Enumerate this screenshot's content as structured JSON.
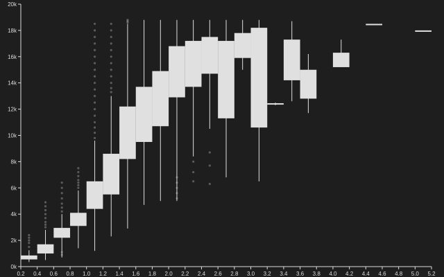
{
  "chart_data": {
    "type": "boxplot",
    "title": "",
    "xlabel": "",
    "ylabel": "",
    "xlim": [
      0.2,
      5.2
    ],
    "ylim": [
      0,
      20000
    ],
    "grid": false,
    "x_ticks": [
      0.2,
      0.4,
      0.6,
      0.8,
      1.0,
      1.2,
      1.4,
      1.6,
      1.8,
      2.0,
      2.2,
      2.4,
      2.6,
      2.8,
      3.0,
      3.2,
      3.4,
      3.6,
      3.8,
      4.0,
      4.2,
      4.4,
      4.6,
      4.8,
      5.0,
      5.2
    ],
    "x_tick_labels": [
      "0.2",
      "0.4",
      "0.6",
      "0.8",
      "1.0",
      "1.2",
      "1.4",
      "1.6",
      "1.8",
      "2.0",
      "2.2",
      "2.4",
      "2.6",
      "2.8",
      "3.0",
      "3.2",
      "3.4",
      "3.6",
      "3.8",
      "4.0",
      "4.2",
      "4.4",
      "4.6",
      "4.8",
      "5.0",
      "5.2"
    ],
    "y_ticks": [
      0,
      2000,
      4000,
      6000,
      8000,
      10000,
      12000,
      14000,
      16000,
      18000,
      20000
    ],
    "y_tick_labels": [
      "0k",
      "2k",
      "4k",
      "6k",
      "8k",
      "10k",
      "12k",
      "14k",
      "16k",
      "18k",
      "20k"
    ],
    "boxes": [
      {
        "x": 0.3,
        "min": 350,
        "q1": 550,
        "median": 700,
        "q3": 850,
        "max": 1250,
        "outliers": [
          1500,
          1800,
          2000,
          2200,
          2400
        ]
      },
      {
        "x": 0.5,
        "min": 500,
        "q1": 1000,
        "median": 1350,
        "q3": 1700,
        "max": 2800,
        "outliers": [
          3000,
          3200,
          3400,
          3700,
          4000,
          4300,
          4600,
          4900
        ]
      },
      {
        "x": 0.7,
        "min": 700,
        "q1": 2200,
        "median": 2600,
        "q3": 2950,
        "max": 4000,
        "outliers": [
          900,
          1100,
          4200,
          4500,
          4800,
          5200,
          5600,
          6000,
          6400
        ]
      },
      {
        "x": 0.9,
        "min": 1400,
        "q1": 3100,
        "median": 3600,
        "q3": 4100,
        "max": 5800,
        "outliers": [
          6000,
          6200,
          6400,
          6600,
          6900,
          7200,
          7500
        ]
      },
      {
        "x": 1.1,
        "min": 1200,
        "q1": 4400,
        "median": 5500,
        "q3": 6500,
        "max": 9600,
        "outliers": [
          9800,
          10200,
          10600,
          11000,
          11500,
          12000,
          12500,
          13000,
          13500,
          14000,
          14500,
          15000,
          15500,
          16000,
          16500,
          17000,
          17500,
          18000,
          18500
        ]
      },
      {
        "x": 1.3,
        "min": 2300,
        "q1": 5500,
        "median": 7000,
        "q3": 8600,
        "max": 13000,
        "outliers": [
          13300,
          13600,
          14000,
          14500,
          15000,
          15500,
          16000,
          16500,
          17000,
          17500,
          18000,
          18500
        ]
      },
      {
        "x": 1.5,
        "min": 2900,
        "q1": 8200,
        "median": 10200,
        "q3": 12200,
        "max": 18500,
        "outliers": [
          18600,
          18700,
          18800
        ]
      },
      {
        "x": 1.7,
        "min": 4700,
        "q1": 9500,
        "median": 11600,
        "q3": 13700,
        "max": 18800,
        "outliers": []
      },
      {
        "x": 1.9,
        "min": 5000,
        "q1": 10700,
        "median": 12800,
        "q3": 14900,
        "max": 18800,
        "outliers": []
      },
      {
        "x": 2.1,
        "min": 5000,
        "q1": 12900,
        "median": 14800,
        "q3": 16800,
        "max": 18800,
        "outliers": [
          5200,
          5600,
          6000,
          6400,
          6800
        ]
      },
      {
        "x": 2.3,
        "min": 8400,
        "q1": 13700,
        "median": 15500,
        "q3": 17200,
        "max": 18800,
        "outliers": [
          6500,
          7200,
          8000
        ]
      },
      {
        "x": 2.5,
        "min": 10500,
        "q1": 14700,
        "median": 16200,
        "q3": 17500,
        "max": 18800,
        "outliers": [
          6300,
          7700,
          8700
        ]
      },
      {
        "x": 2.7,
        "min": 6800,
        "q1": 11300,
        "median": 14300,
        "q3": 17200,
        "max": 18800,
        "outliers": []
      },
      {
        "x": 2.9,
        "min": 15000,
        "q1": 15900,
        "median": 16900,
        "q3": 17800,
        "max": 18800,
        "outliers": []
      },
      {
        "x": 3.1,
        "min": 6500,
        "q1": 10600,
        "median": 14500,
        "q3": 18200,
        "max": 18800,
        "outliers": []
      },
      {
        "x": 3.3,
        "min": 12300,
        "q1": 12350,
        "median": 12400,
        "q3": 12450,
        "max": 12500,
        "outliers": []
      },
      {
        "x": 3.5,
        "min": 12600,
        "q1": 14200,
        "median": 15800,
        "q3": 17300,
        "max": 18700,
        "outliers": []
      },
      {
        "x": 3.7,
        "min": 11700,
        "q1": 12800,
        "median": 13900,
        "q3": 15000,
        "max": 16200,
        "outliers": []
      },
      {
        "x": 4.1,
        "min": 15200,
        "q1": 15200,
        "median": 15800,
        "q3": 16300,
        "max": 17300,
        "outliers": []
      },
      {
        "x": 4.5,
        "min": 18500,
        "q1": 18500,
        "median": 18500,
        "q3": 18500,
        "max": 18500,
        "outliers": []
      },
      {
        "x": 5.1,
        "min": 18000,
        "q1": 18000,
        "median": 18000,
        "q3": 18000,
        "max": 18000,
        "outliers": []
      }
    ]
  }
}
